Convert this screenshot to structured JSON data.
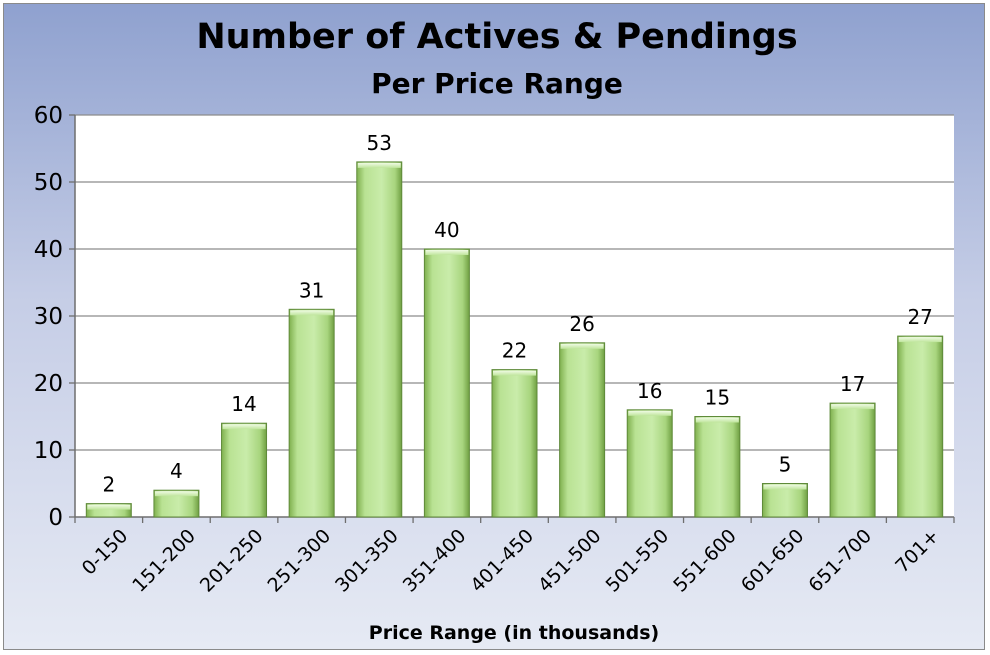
{
  "chart_data": {
    "type": "bar",
    "title": "Number of Actives & Pendings",
    "subtitle": "Per Price Range",
    "xlabel": "Price Range (in thousands)",
    "ylabel": "",
    "ylim": [
      0,
      60
    ],
    "yticks": [
      0,
      10,
      20,
      30,
      40,
      50,
      60
    ],
    "grid": true,
    "categories": [
      "0-150",
      "151-200",
      "201-250",
      "251-300",
      "301-350",
      "351-400",
      "401-450",
      "451-500",
      "501-550",
      "551-600",
      "601-650",
      "651-700",
      "701+"
    ],
    "values": [
      2,
      4,
      14,
      31,
      53,
      40,
      22,
      26,
      16,
      15,
      5,
      17,
      27
    ],
    "bar_color": "#b6e08f",
    "bar_edge_color": "#5f8a3a"
  }
}
